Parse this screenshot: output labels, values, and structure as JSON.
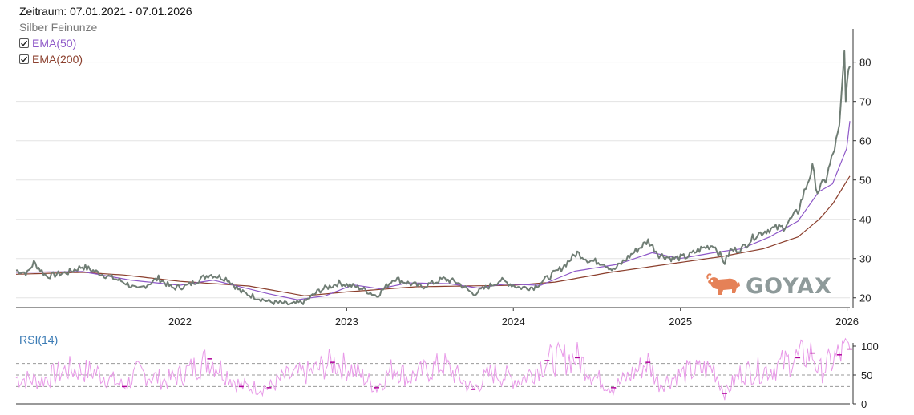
{
  "legend": {
    "range": "Zeitraum: 07.01.2021 - 07.01.2026",
    "instrument": "Silber Feinunze",
    "ema50": "EMA(50)",
    "ema200": "EMA(200)"
  },
  "brand": {
    "name": "GOYAX"
  },
  "colors": {
    "price": "#6f7d74",
    "ema50": "#8e58c8",
    "ema200": "#8b3f2d",
    "rsi": "#e89ae8",
    "rsi_extreme": "#b0009a",
    "rsi_label": "#3b7bb5",
    "grid": "#e3e3e3",
    "logo": "#e58157"
  },
  "chart_data": [
    {
      "type": "line",
      "title": "Silber Feinunze",
      "xlabel": "",
      "ylabel": "",
      "x_ticks": [
        "2022",
        "2023",
        "2024",
        "2025",
        "2026"
      ],
      "y_ticks": [
        20,
        30,
        40,
        50,
        60,
        70,
        80
      ],
      "ylim": [
        17.5,
        88.5
      ],
      "xlim": [
        "2021-01-07",
        "2026-01-07"
      ],
      "grid": true,
      "axis_side": "right",
      "series": [
        {
          "name": "Silber Feinunze",
          "x": [
            "2021-01-07",
            "2021-02-01",
            "2021-02-15",
            "2021-03-15",
            "2021-05-01",
            "2021-06-01",
            "2021-07-15",
            "2021-09-01",
            "2021-09-30",
            "2021-11-15",
            "2021-12-15",
            "2022-01-15",
            "2022-03-07",
            "2022-04-15",
            "2022-05-15",
            "2022-07-15",
            "2022-09-01",
            "2022-10-01",
            "2022-11-01",
            "2022-12-15",
            "2023-02-01",
            "2023-03-08",
            "2023-04-15",
            "2023-05-15",
            "2023-06-15",
            "2023-08-01",
            "2023-08-31",
            "2023-10-05",
            "2023-11-15",
            "2023-12-04",
            "2024-01-15",
            "2024-02-15",
            "2024-03-15",
            "2024-04-15",
            "2024-05-20",
            "2024-06-15",
            "2024-07-15",
            "2024-08-07",
            "2024-09-15",
            "2024-10-22",
            "2024-11-15",
            "2024-12-15",
            "2025-01-15",
            "2025-02-15",
            "2025-03-15",
            "2025-04-08",
            "2025-04-20",
            "2025-05-15",
            "2025-06-15",
            "2025-07-15",
            "2025-08-15",
            "2025-09-15",
            "2025-10-17",
            "2025-10-28",
            "2025-11-15",
            "2025-12-01",
            "2025-12-15",
            "2025-12-26",
            "2025-12-29",
            "2026-01-07"
          ],
          "values": [
            27.0,
            26.3,
            29.0,
            25.5,
            26.5,
            28.0,
            26.0,
            24.0,
            22.0,
            25.0,
            22.5,
            23.0,
            26.0,
            24.8,
            21.5,
            19.0,
            18.3,
            19.0,
            21.8,
            23.8,
            22.5,
            20.5,
            25.0,
            23.8,
            22.8,
            24.8,
            24.0,
            21.0,
            23.3,
            24.5,
            22.6,
            22.7,
            25.0,
            27.5,
            31.5,
            29.5,
            29.0,
            27.0,
            31.0,
            34.5,
            31.0,
            30.0,
            30.5,
            32.5,
            33.5,
            29.0,
            32.0,
            32.5,
            36.0,
            37.5,
            38.0,
            42.0,
            53.0,
            47.0,
            50.0,
            56.5,
            63.0,
            82.5,
            71.5,
            79.0
          ]
        },
        {
          "name": "EMA(50)",
          "x": [
            "2021-01-07",
            "2021-06-01",
            "2021-09-15",
            "2021-12-31",
            "2022-03-15",
            "2022-07-15",
            "2022-09-15",
            "2022-11-15",
            "2023-01-15",
            "2023-03-15",
            "2023-05-15",
            "2023-08-15",
            "2023-10-15",
            "2023-12-15",
            "2024-03-01",
            "2024-05-15",
            "2024-08-15",
            "2024-10-31",
            "2024-12-31",
            "2025-03-15",
            "2025-05-15",
            "2025-07-15",
            "2025-09-15",
            "2025-10-31",
            "2025-11-30",
            "2025-12-31",
            "2026-01-07"
          ],
          "values": [
            26.5,
            26.7,
            24.5,
            23.2,
            24.5,
            21.0,
            19.5,
            20.5,
            23.3,
            22.3,
            23.8,
            23.6,
            22.5,
            23.5,
            23.2,
            26.8,
            28.5,
            31.5,
            30.0,
            31.5,
            32.5,
            35.5,
            39.5,
            47.0,
            49.0,
            58.0,
            65.0
          ]
        },
        {
          "name": "EMA(200)",
          "x": [
            "2021-01-07",
            "2021-06-01",
            "2021-09-01",
            "2022-01-01",
            "2022-06-01",
            "2022-10-01",
            "2023-01-01",
            "2023-06-01",
            "2023-12-31",
            "2024-04-01",
            "2024-08-01",
            "2024-12-31",
            "2025-04-01",
            "2025-07-01",
            "2025-09-15",
            "2025-11-01",
            "2025-12-01",
            "2026-01-07"
          ],
          "values": [
            26.0,
            26.5,
            25.8,
            24.2,
            23.0,
            20.5,
            21.5,
            22.8,
            23.2,
            24.0,
            26.5,
            29.0,
            30.5,
            32.5,
            35.5,
            40.0,
            44.0,
            51.0
          ]
        }
      ]
    },
    {
      "type": "line",
      "title": "RSI(14)",
      "xlabel": "",
      "ylabel": "",
      "y_ticks": [
        0,
        50,
        100
      ],
      "ylim": [
        0,
        100
      ],
      "xlim": [
        "2021-01-07",
        "2026-01-07"
      ],
      "reference_lines": [
        30,
        50,
        70
      ],
      "grid": false,
      "axis_side": "right",
      "series": [
        {
          "name": "RSI(14)",
          "x": [
            "2021-01-07",
            "2021-03-01",
            "2021-05-01",
            "2021-07-01",
            "2021-09-01",
            "2021-10-01",
            "2021-12-01",
            "2022-01-01",
            "2022-03-07",
            "2022-05-15",
            "2022-07-15",
            "2022-08-15",
            "2022-10-15",
            "2022-12-01",
            "2023-01-15",
            "2023-03-08",
            "2023-04-15",
            "2023-05-15",
            "2023-08-01",
            "2023-10-05",
            "2023-11-15",
            "2024-01-15",
            "2024-03-15",
            "2024-05-20",
            "2024-06-30",
            "2024-08-07",
            "2024-10-22",
            "2024-11-15",
            "2025-01-15",
            "2025-03-15",
            "2025-04-08",
            "2025-05-15",
            "2025-07-15",
            "2025-09-15",
            "2025-10-17",
            "2025-11-01",
            "2025-12-15",
            "2026-01-07"
          ],
          "values": [
            45,
            40,
            60,
            55,
            30,
            55,
            40,
            50,
            78,
            30,
            28,
            45,
            55,
            72,
            60,
            28,
            65,
            45,
            68,
            25,
            55,
            40,
            75,
            80,
            45,
            28,
            72,
            35,
            55,
            62,
            18,
            55,
            60,
            80,
            88,
            55,
            85,
            95
          ]
        }
      ]
    }
  ]
}
